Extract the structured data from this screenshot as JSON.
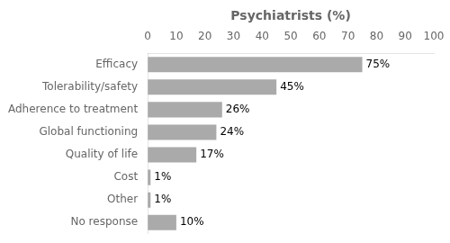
{
  "chart_data": {
    "type": "bar",
    "orientation": "horizontal",
    "xlabel": "Psychiatrists (%)",
    "categories": [
      "No response",
      "Other",
      "Cost",
      "Quality of life",
      "Global functioning",
      "Adherence to treatment",
      "Tolerability/safety",
      "Efficacy"
    ],
    "values": [
      10,
      1,
      1,
      17,
      24,
      26,
      45,
      75
    ],
    "value_labels": [
      "10%",
      "1%",
      "1%",
      "17%",
      "24%",
      "26%",
      "45%",
      "75%"
    ],
    "data_labels": true,
    "color": "#aaaaaa",
    "xlim": [
      0,
      100
    ],
    "xticks": [
      0,
      10,
      20,
      30,
      40,
      50,
      60,
      70,
      80,
      90,
      100
    ],
    "grid": false
  }
}
